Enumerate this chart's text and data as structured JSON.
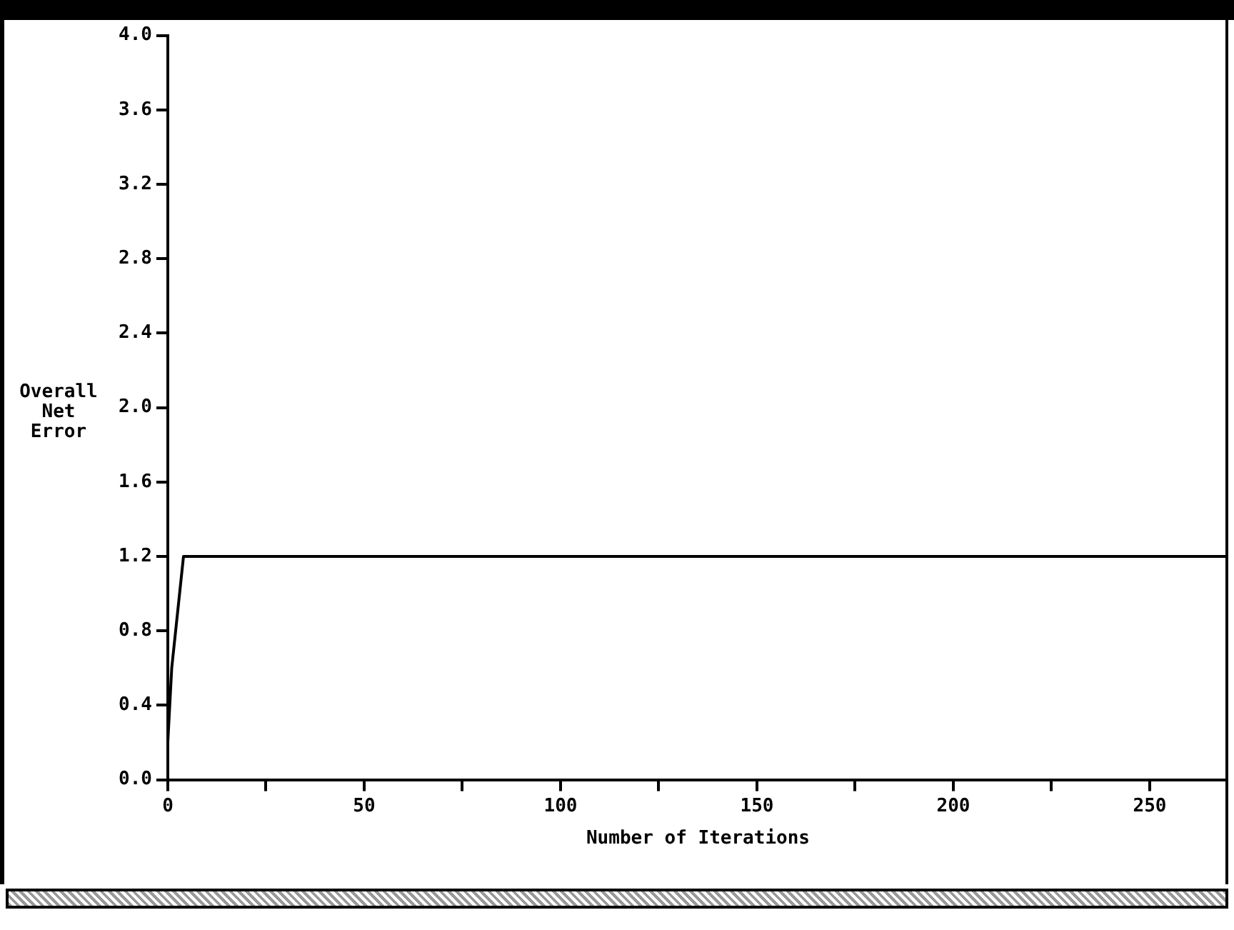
{
  "chart_data": {
    "type": "line",
    "xlabel": "Number of Iterations",
    "ylabel": "Overall Net Error",
    "series": [
      {
        "color": "#000000",
        "x": [
          0,
          1,
          4,
          270
        ],
        "values": [
          0.2,
          0.6,
          1.2,
          1.2
        ]
      }
    ],
    "xlim": [
      0,
      270
    ],
    "xticks": [
      0,
      {
        "value": 25,
        "label": null
      },
      50,
      {
        "value": 75,
        "label": null
      },
      100,
      {
        "value": 125,
        "label": null
      },
      150,
      {
        "value": 175,
        "label": null
      },
      200,
      {
        "value": 225,
        "label": null
      },
      250
    ],
    "ylim": [
      0,
      4
    ],
    "yticks": [
      {
        "value": 0,
        "label": "0.0"
      },
      {
        "value": 0.4,
        "label": "0.4"
      },
      {
        "value": 0.8,
        "label": "0.8"
      },
      {
        "value": 1.2,
        "label": "1.2"
      },
      {
        "value": 1.6,
        "label": "1.6"
      },
      {
        "value": 2,
        "label": "2.0"
      },
      {
        "value": 2.4,
        "label": "2.4"
      },
      {
        "value": 2.8,
        "label": "2.8"
      },
      {
        "value": 3.2,
        "label": "3.2"
      },
      {
        "value": 3.6,
        "label": "3.6"
      },
      {
        "value": 4,
        "label": "4.0"
      }
    ],
    "grid": false,
    "legend": false,
    "marker": "none",
    "line_style": "solid"
  }
}
